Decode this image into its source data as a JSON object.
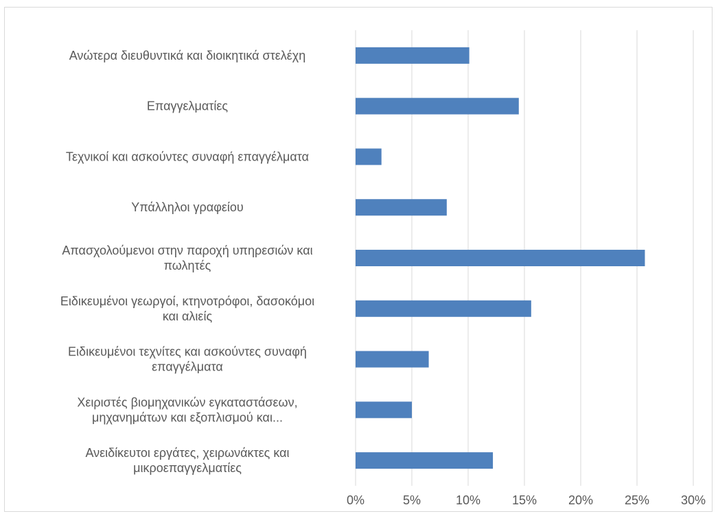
{
  "chart_data": {
    "type": "bar",
    "orientation": "horizontal",
    "categories": [
      [
        "Ανώτερα διευθυντικά και διοικητικά στελέχη"
      ],
      [
        "Επαγγελματίες"
      ],
      [
        "Τεχνικοί και ασκούντες συναφή επαγγέλματα"
      ],
      [
        "Υπάλληλοι γραφείου"
      ],
      [
        "Απασχολούμενοι στην παροχή υπηρεσιών και",
        "πωλητές"
      ],
      [
        "Ειδικευμένοι γεωργοί, κτηνοτρόφοι, δασοκόμοι",
        "και αλιείς"
      ],
      [
        "Ειδικευμένοι τεχνίτες και ασκούντες συναφή",
        "επαγγέλματα"
      ],
      [
        "Χειριστές βιομηχανικών εγκαταστάσεων,",
        "μηχανημάτων και εξοπλισμού και..."
      ],
      [
        "Ανειδίκευτοι εργάτες, χειρωνάκτες και",
        "μικροεπαγγελματίες"
      ]
    ],
    "values": [
      10.1,
      14.5,
      2.3,
      8.1,
      25.7,
      15.6,
      6.5,
      5.0,
      12.2
    ],
    "xlim": [
      0,
      30
    ],
    "ticks": [
      {
        "value": 0,
        "label": "0%"
      },
      {
        "value": 5,
        "label": "5%"
      },
      {
        "value": 10,
        "label": "10%"
      },
      {
        "value": 15,
        "label": "15%"
      },
      {
        "value": 20,
        "label": "20%"
      },
      {
        "value": 25,
        "label": "25%"
      },
      {
        "value": 30,
        "label": "30%"
      }
    ],
    "grid": true,
    "legend": "none",
    "bar_color": "#4f81bd",
    "grid_color": "#d9d9d9",
    "text_color": "#595959"
  }
}
